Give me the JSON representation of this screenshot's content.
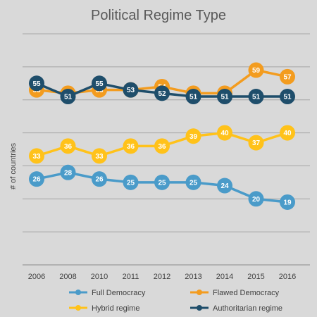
{
  "chart_data": {
    "type": "line",
    "title": "Political Regime Type",
    "xlabel": "",
    "ylabel": "# of countries",
    "categories": [
      "2006",
      "2008",
      "2010",
      "2011",
      "2012",
      "2013",
      "2014",
      "2015",
      "2016"
    ],
    "ylim": [
      0,
      70
    ],
    "grid": true,
    "legend": "bottom",
    "series": [
      {
        "name": "Full Democracy",
        "color": "#4a9bc9",
        "values": [
          26,
          28,
          26,
          25,
          25,
          25,
          24,
          20,
          19
        ]
      },
      {
        "name": "Flawed Democracy",
        "color": "#f39c1f",
        "values": [
          53,
          52,
          53,
          53,
          54,
          52,
          52,
          59,
          57
        ]
      },
      {
        "name": "Hybrid regime",
        "color": "#ffc21a",
        "values": [
          33,
          36,
          33,
          36,
          36,
          39,
          40,
          37,
          40
        ]
      },
      {
        "name": "Authoritarian regime",
        "color": "#1f4e6b",
        "values": [
          55,
          51,
          55,
          53,
          52,
          51,
          51,
          51,
          51
        ]
      }
    ]
  }
}
